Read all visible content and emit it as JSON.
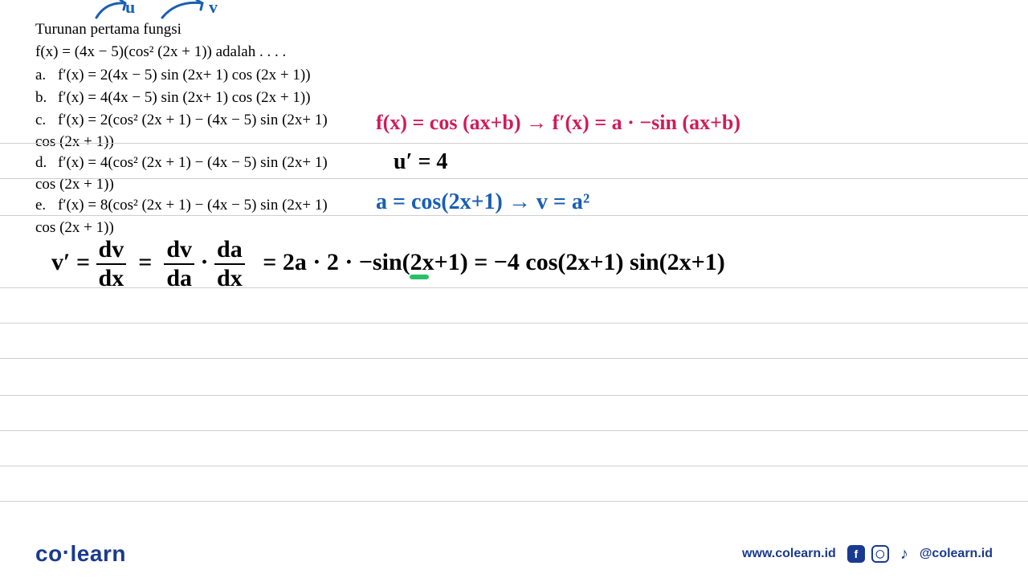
{
  "problem": {
    "line1": "Turunan pertama fungsi",
    "line2": "f(x) = (4x − 5)(cos² (2x + 1)) adalah . . . .",
    "options": [
      {
        "letter": "a.",
        "text": "f′(x) = 2(4x − 5) sin (2x+ 1) cos (2x + 1))"
      },
      {
        "letter": "b.",
        "text": "f′(x) = 4(4x − 5) sin (2x+ 1) cos (2x + 1))"
      },
      {
        "letter": "c.",
        "text": "f′(x) = 2(cos² (2x + 1) − (4x − 5) sin (2x+ 1)",
        "cont": "cos (2x + 1))"
      },
      {
        "letter": "d.",
        "text": "f′(x) = 4(cos² (2x + 1) − (4x − 5) sin (2x+ 1)",
        "cont": "cos (2x + 1))"
      },
      {
        "letter": "e.",
        "text": "f′(x) = 8(cos² (2x + 1) − (4x − 5) sin (2x+ 1)",
        "cont": "cos (2x + 1))"
      }
    ]
  },
  "annotations": {
    "arrow_u": {
      "label": "u",
      "color": "#1a5fb4"
    },
    "arrow_v": {
      "label": "v",
      "color": "#1a5fb4"
    },
    "rule_red": {
      "text": "f(x) = cos (ax+b) → f′(x) = a · −sin (ax+b)",
      "color": "#d01c5a"
    },
    "u_prime": {
      "text": "u′ = 4",
      "color": "#000000"
    },
    "a_def": {
      "text": "a = cos(2x+1)  →  v = a²",
      "color": "#1a5fb4"
    },
    "v_prime_lhs": {
      "color": "#000000"
    },
    "v_prime_rhs": {
      "text": "=  2a · 2 · −sin(2x+1)  =  −4 cos(2x+1) sin(2x+1)",
      "color": "#000000"
    },
    "green_mark": {
      "color": "#2bbf6a"
    }
  },
  "ruled_lines_y": [
    178,
    222,
    268,
    358,
    402,
    446,
    492,
    536,
    580,
    624
  ],
  "footer": {
    "brand_co": "co",
    "brand_learn": "learn",
    "url": "www.colearn.id",
    "handle": "@colearn.id"
  },
  "colors": {
    "text": "#000000",
    "rule": "#cfcfcf",
    "blue": "#1a5fb4",
    "red": "#d01c5a",
    "brand": "#1a3a8f",
    "green": "#2bbf6a"
  }
}
